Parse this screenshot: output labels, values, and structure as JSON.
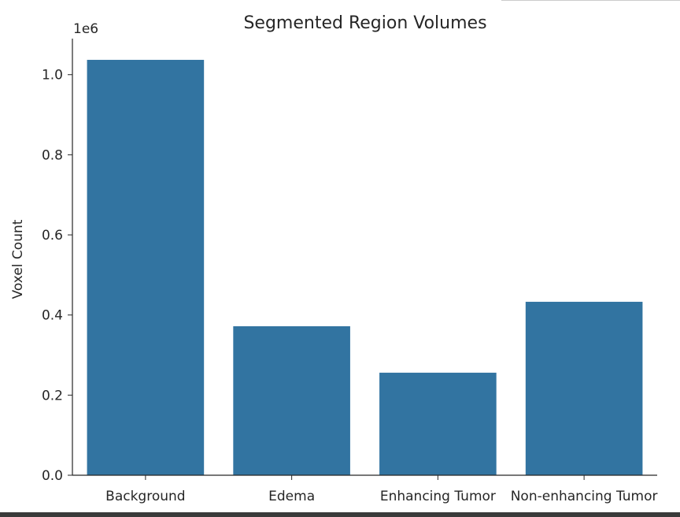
{
  "chart_data": {
    "type": "bar",
    "title": "Segmented Region Volumes",
    "xlabel": "",
    "ylabel": "Voxel Count",
    "y_offset_text": "1e6",
    "categories": [
      "Background",
      "Edema",
      "Enhancing Tumor",
      "Non-enhancing Tumor"
    ],
    "values": [
      1037000,
      372000,
      256000,
      433000
    ],
    "ylim": [
      0,
      1090000
    ],
    "y_ticks": [
      0,
      200000,
      400000,
      600000,
      800000,
      1000000
    ],
    "y_tick_labels": [
      "0.0",
      "0.2",
      "0.4",
      "0.6",
      "0.8",
      "1.0"
    ],
    "bar_color": "#3274a1",
    "grid": false,
    "legend": "none"
  }
}
